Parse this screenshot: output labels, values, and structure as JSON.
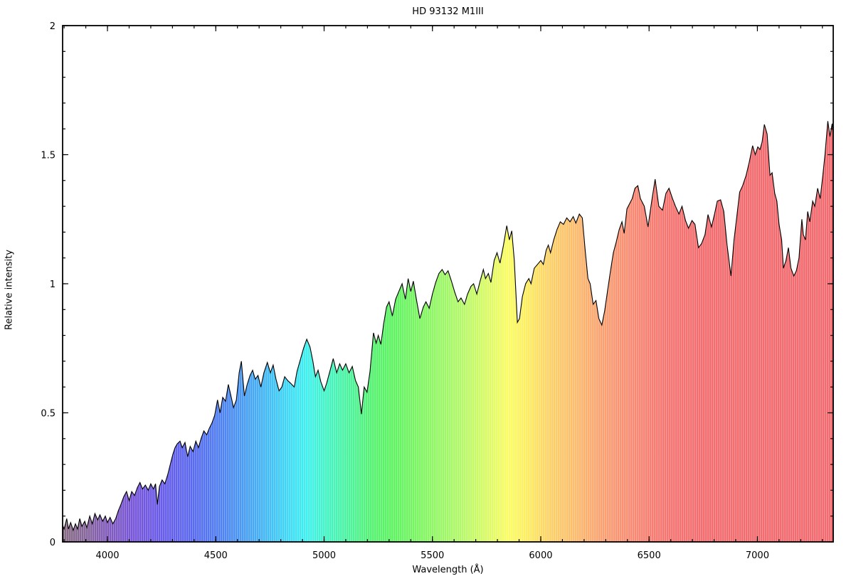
{
  "chart_data": {
    "type": "area",
    "title": "HD 93132 M1III",
    "xlabel": "Wavelength (Å)",
    "ylabel": "Relative intensity",
    "xlim": [
      3793,
      7350
    ],
    "ylim": [
      0,
      2
    ],
    "grid": false,
    "legend_position": "none",
    "x_major_ticks": [
      4000,
      4500,
      5000,
      5500,
      6000,
      6500,
      7000
    ],
    "x_major_tick_labels": [
      "4000",
      "4500",
      "5000",
      "5500",
      "6000",
      "6500",
      "7000"
    ],
    "x_minor_tick_step": 100,
    "y_major_ticks": [
      0,
      0.5,
      1,
      1.5,
      2
    ],
    "y_major_tick_labels": [
      "0",
      "0.5",
      "1",
      "1.5",
      "2"
    ],
    "y_minor_tick_step": 0.1,
    "line_color": "#000000",
    "axis_color": "#000000",
    "background_color": "#ffffff",
    "fill_style": "spectral-gradient-vertical-strokes",
    "spectrum_gradient": [
      {
        "wavelength": 3793,
        "color": "#85697f"
      },
      {
        "wavelength": 3900,
        "color": "#84639a"
      },
      {
        "wavelength": 4000,
        "color": "#7f58bb"
      },
      {
        "wavelength": 4120,
        "color": "#7452d8"
      },
      {
        "wavelength": 4250,
        "color": "#6558ea"
      },
      {
        "wavelength": 4400,
        "color": "#5567f0"
      },
      {
        "wavelength": 4550,
        "color": "#4a85f2"
      },
      {
        "wavelength": 4700,
        "color": "#41aef4"
      },
      {
        "wavelength": 4820,
        "color": "#3cd4f6"
      },
      {
        "wavelength": 4920,
        "color": "#3cf0ee"
      },
      {
        "wavelength": 5010,
        "color": "#41f4c4"
      },
      {
        "wavelength": 5120,
        "color": "#49f399"
      },
      {
        "wavelength": 5220,
        "color": "#52f16e"
      },
      {
        "wavelength": 5330,
        "color": "#5ef35e"
      },
      {
        "wavelength": 5480,
        "color": "#86f660"
      },
      {
        "wavelength": 5620,
        "color": "#aef866"
      },
      {
        "wavelength": 5760,
        "color": "#dcfa62"
      },
      {
        "wavelength": 5850,
        "color": "#fbfc60"
      },
      {
        "wavelength": 5930,
        "color": "#fcee5e"
      },
      {
        "wavelength": 6040,
        "color": "#fcd165"
      },
      {
        "wavelength": 6160,
        "color": "#fcba6a"
      },
      {
        "wavelength": 6280,
        "color": "#fb9f6e"
      },
      {
        "wavelength": 6420,
        "color": "#f98871"
      },
      {
        "wavelength": 6560,
        "color": "#f7746e"
      },
      {
        "wavelength": 6750,
        "color": "#f4696c"
      },
      {
        "wavelength": 7350,
        "color": "#f2686c"
      }
    ],
    "series": [
      {
        "name": "spectrum",
        "x": [
          3793,
          3800,
          3812,
          3820,
          3830,
          3842,
          3852,
          3862,
          3872,
          3882,
          3895,
          3905,
          3918,
          3930,
          3942,
          3955,
          3965,
          3978,
          3990,
          4000,
          4012,
          4025,
          4038,
          4050,
          4062,
          4075,
          4088,
          4100,
          4112,
          4125,
          4138,
          4150,
          4162,
          4175,
          4188,
          4200,
          4212,
          4222,
          4230,
          4240,
          4252,
          4265,
          4278,
          4290,
          4302,
          4312,
          4322,
          4335,
          4345,
          4358,
          4370,
          4382,
          4395,
          4408,
          4420,
          4432,
          4445,
          4458,
          4470,
          4482,
          4495,
          4508,
          4520,
          4532,
          4545,
          4558,
          4570,
          4582,
          4595,
          4608,
          4618,
          4632,
          4645,
          4658,
          4670,
          4682,
          4695,
          4708,
          4722,
          4738,
          4752,
          4765,
          4778,
          4792,
          4805,
          4818,
          4832,
          4845,
          4862,
          4875,
          4890,
          4905,
          4920,
          4935,
          4948,
          4960,
          4972,
          4985,
          5000,
          5012,
          5028,
          5042,
          5058,
          5072,
          5085,
          5100,
          5115,
          5130,
          5145,
          5158,
          5172,
          5185,
          5198,
          5212,
          5228,
          5240,
          5250,
          5262,
          5275,
          5288,
          5300,
          5315,
          5330,
          5345,
          5360,
          5375,
          5388,
          5400,
          5412,
          5428,
          5442,
          5458,
          5470,
          5485,
          5500,
          5515,
          5530,
          5545,
          5558,
          5572,
          5588,
          5602,
          5618,
          5632,
          5648,
          5662,
          5678,
          5690,
          5705,
          5720,
          5735,
          5745,
          5758,
          5770,
          5785,
          5798,
          5812,
          5828,
          5843,
          5855,
          5866,
          5878,
          5892,
          5902,
          5915,
          5930,
          5945,
          5955,
          5970,
          5985,
          6000,
          6012,
          6025,
          6035,
          6045,
          6060,
          6075,
          6090,
          6105,
          6120,
          6135,
          6150,
          6162,
          6178,
          6192,
          6205,
          6218,
          6228,
          6242,
          6255,
          6268,
          6282,
          6295,
          6308,
          6322,
          6335,
          6348,
          6362,
          6375,
          6385,
          6398,
          6410,
          6422,
          6435,
          6448,
          6460,
          6478,
          6495,
          6512,
          6528,
          6545,
          6562,
          6578,
          6592,
          6608,
          6622,
          6638,
          6652,
          6668,
          6682,
          6698,
          6712,
          6728,
          6742,
          6758,
          6772,
          6788,
          6802,
          6815,
          6830,
          6845,
          6860,
          6878,
          6892,
          6905,
          6918,
          6932,
          6948,
          6962,
          6978,
          6990,
          7002,
          7012,
          7022,
          7032,
          7045,
          7058,
          7068,
          7080,
          7090,
          7100,
          7112,
          7120,
          7132,
          7143,
          7155,
          7168,
          7180,
          7192,
          7205,
          7212,
          7222,
          7232,
          7242,
          7255,
          7265,
          7278,
          7290,
          7302,
          7312,
          7325,
          7335,
          7345,
          7350
        ],
        "y": [
          0.065,
          0.05,
          0.09,
          0.05,
          0.075,
          0.045,
          0.07,
          0.05,
          0.09,
          0.06,
          0.08,
          0.055,
          0.1,
          0.07,
          0.11,
          0.085,
          0.105,
          0.08,
          0.1,
          0.075,
          0.095,
          0.07,
          0.09,
          0.12,
          0.145,
          0.175,
          0.195,
          0.16,
          0.195,
          0.18,
          0.21,
          0.23,
          0.205,
          0.22,
          0.2,
          0.225,
          0.205,
          0.225,
          0.145,
          0.215,
          0.24,
          0.225,
          0.26,
          0.3,
          0.34,
          0.365,
          0.38,
          0.39,
          0.365,
          0.385,
          0.33,
          0.37,
          0.35,
          0.39,
          0.365,
          0.4,
          0.43,
          0.415,
          0.44,
          0.46,
          0.49,
          0.55,
          0.5,
          0.56,
          0.545,
          0.61,
          0.565,
          0.52,
          0.55,
          0.655,
          0.7,
          0.565,
          0.61,
          0.645,
          0.665,
          0.63,
          0.645,
          0.6,
          0.655,
          0.695,
          0.655,
          0.685,
          0.63,
          0.585,
          0.6,
          0.64,
          0.625,
          0.615,
          0.6,
          0.66,
          0.705,
          0.75,
          0.785,
          0.755,
          0.7,
          0.64,
          0.665,
          0.62,
          0.585,
          0.615,
          0.665,
          0.71,
          0.655,
          0.69,
          0.665,
          0.69,
          0.655,
          0.68,
          0.625,
          0.6,
          0.495,
          0.6,
          0.58,
          0.66,
          0.81,
          0.77,
          0.8,
          0.765,
          0.845,
          0.91,
          0.93,
          0.875,
          0.94,
          0.97,
          1.0,
          0.94,
          1.02,
          0.97,
          1.01,
          0.93,
          0.865,
          0.91,
          0.93,
          0.905,
          0.96,
          1.005,
          1.04,
          1.055,
          1.035,
          1.05,
          1.01,
          0.97,
          0.93,
          0.945,
          0.92,
          0.96,
          0.99,
          1.0,
          0.96,
          1.01,
          1.055,
          1.02,
          1.04,
          1.005,
          1.09,
          1.12,
          1.08,
          1.15,
          1.225,
          1.17,
          1.205,
          1.09,
          0.85,
          0.865,
          0.95,
          1.0,
          1.02,
          1.0,
          1.06,
          1.075,
          1.09,
          1.075,
          1.13,
          1.15,
          1.12,
          1.17,
          1.21,
          1.24,
          1.23,
          1.255,
          1.24,
          1.26,
          1.235,
          1.27,
          1.255,
          1.13,
          1.02,
          1.0,
          0.92,
          0.935,
          0.865,
          0.84,
          0.895,
          0.97,
          1.05,
          1.12,
          1.16,
          1.21,
          1.24,
          1.195,
          1.29,
          1.31,
          1.33,
          1.37,
          1.38,
          1.33,
          1.3,
          1.22,
          1.32,
          1.405,
          1.3,
          1.285,
          1.35,
          1.37,
          1.33,
          1.3,
          1.27,
          1.3,
          1.245,
          1.215,
          1.245,
          1.23,
          1.14,
          1.155,
          1.19,
          1.268,
          1.22,
          1.27,
          1.32,
          1.325,
          1.28,
          1.15,
          1.03,
          1.17,
          1.26,
          1.355,
          1.38,
          1.42,
          1.47,
          1.535,
          1.5,
          1.53,
          1.52,
          1.55,
          1.617,
          1.58,
          1.42,
          1.43,
          1.35,
          1.32,
          1.23,
          1.17,
          1.06,
          1.09,
          1.14,
          1.06,
          1.03,
          1.05,
          1.1,
          1.25,
          1.19,
          1.17,
          1.28,
          1.24,
          1.32,
          1.3,
          1.37,
          1.33,
          1.42,
          1.5,
          1.63,
          1.57,
          1.62,
          1.58
        ]
      }
    ]
  },
  "labels": {
    "title": "HD 93132 M1III",
    "xlabel": "Wavelength (Å)",
    "ylabel": "Relative intensity"
  }
}
